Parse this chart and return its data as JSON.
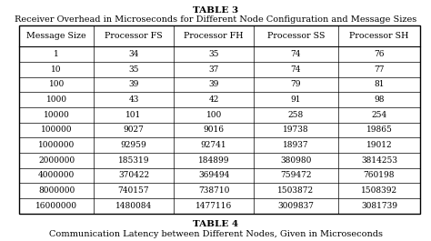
{
  "title1": "TABLE 3",
  "title2": "Receiver Overhead in Microseconds for Different Node Configuration and Message Sizes",
  "title3": "TABLE 4",
  "title4": "Communication Latency between Different Nodes, Given in Microseconds",
  "headers": [
    "Message Size",
    "Processor FS",
    "Processor FH",
    "Processor SS",
    "Processor SH"
  ],
  "rows": [
    [
      "1",
      "34",
      "35",
      "74",
      "76"
    ],
    [
      "10",
      "35",
      "37",
      "74",
      "77"
    ],
    [
      "100",
      "39",
      "39",
      "79",
      "81"
    ],
    [
      "1000",
      "43",
      "42",
      "91",
      "98"
    ],
    [
      "10000",
      "101",
      "100",
      "258",
      "254"
    ],
    [
      "100000",
      "9027",
      "9016",
      "19738",
      "19865"
    ],
    [
      "1000000",
      "92959",
      "92741",
      "18937",
      "19012"
    ],
    [
      "2000000",
      "185319",
      "184899",
      "380980",
      "3814253"
    ],
    [
      "4000000",
      "370422",
      "369494",
      "759472",
      "760198"
    ],
    [
      "8000000",
      "740157",
      "738710",
      "1503872",
      "1508392"
    ],
    [
      "16000000",
      "1480084",
      "1477116",
      "3009837",
      "3081739"
    ]
  ],
  "bg_color": "#ffffff",
  "text_color": "#000000",
  "header_fontsize": 6.8,
  "cell_fontsize": 6.5,
  "title_fontsize": 7.5,
  "subtitle_fontsize": 7.0,
  "table_title_fontsize": 7.5,
  "table_subtitle_fontsize": 7.0
}
